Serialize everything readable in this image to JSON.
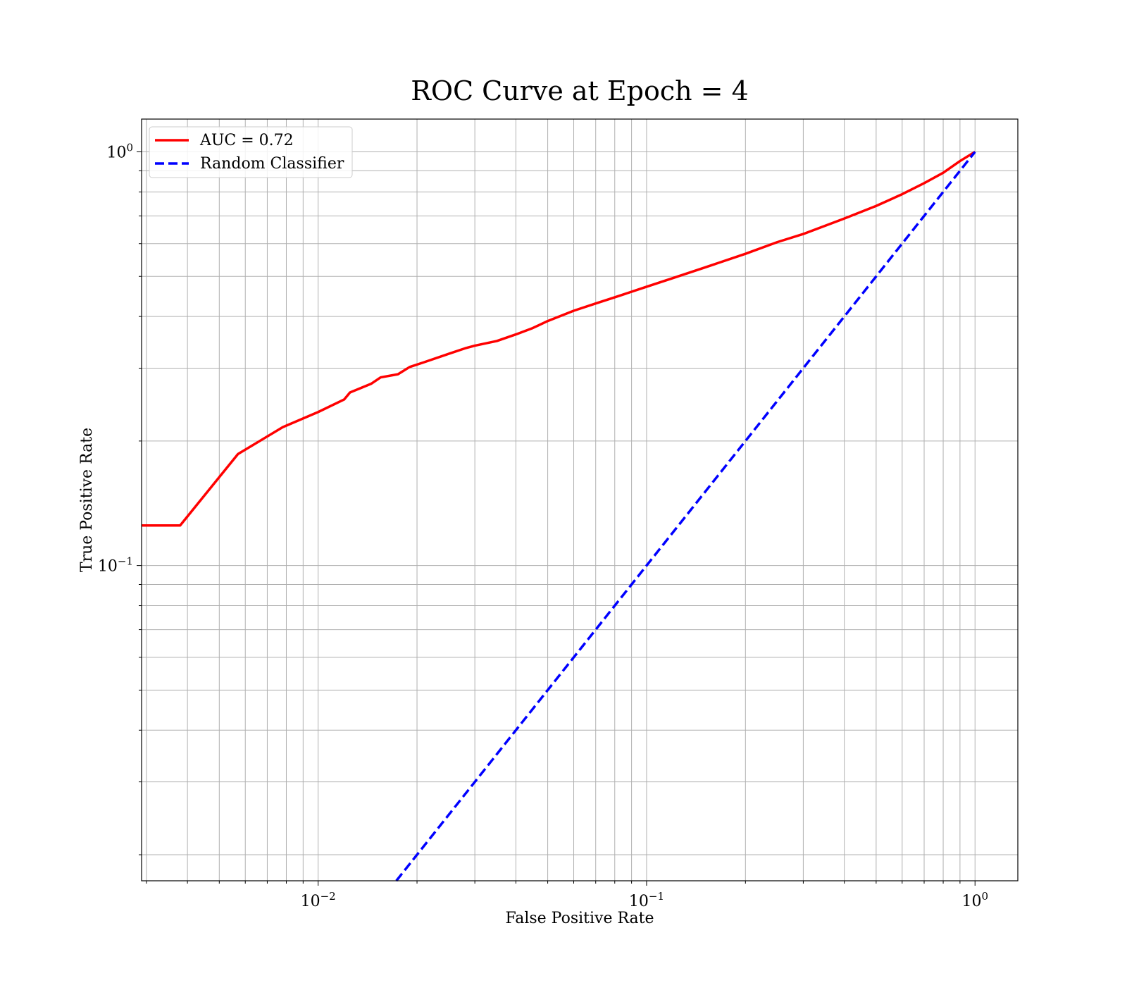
{
  "chart_data": {
    "type": "line",
    "title": "ROC Curve at Epoch = 4",
    "xlabel": "False Positive Rate",
    "ylabel": "True Positive Rate",
    "xscale": "log",
    "yscale": "log",
    "xlim": [
      0.0029,
      1.35
    ],
    "ylim": [
      0.0173,
      1.2
    ],
    "grid": true,
    "grid_minor": true,
    "legend_position": "top-left",
    "x_ticks": [
      {
        "value": 0.01,
        "base": "10",
        "exp": "−2"
      },
      {
        "value": 0.1,
        "base": "10",
        "exp": "−1"
      },
      {
        "value": 1,
        "base": "10",
        "exp": "0"
      }
    ],
    "y_ticks": [
      {
        "value": 0.1,
        "base": "10",
        "exp": "−1"
      },
      {
        "value": 1,
        "base": "10",
        "exp": "0"
      }
    ],
    "series": [
      {
        "name": "AUC = 0.72",
        "color": "#ff0000",
        "style": "solid",
        "x": [
          0.0029,
          0.0038,
          0.0057,
          0.0078,
          0.01,
          0.012,
          0.0125,
          0.0145,
          0.0155,
          0.0175,
          0.019,
          0.021,
          0.025,
          0.028,
          0.03,
          0.035,
          0.04,
          0.045,
          0.05,
          0.06,
          0.07,
          0.08,
          0.1,
          0.12,
          0.15,
          0.2,
          0.25,
          0.3,
          0.4,
          0.5,
          0.6,
          0.7,
          0.8,
          0.9,
          1.0
        ],
        "y": [
          0.125,
          0.125,
          0.186,
          0.216,
          0.235,
          0.252,
          0.262,
          0.275,
          0.285,
          0.29,
          0.302,
          0.31,
          0.325,
          0.335,
          0.34,
          0.349,
          0.362,
          0.375,
          0.39,
          0.413,
          0.43,
          0.445,
          0.472,
          0.495,
          0.525,
          0.567,
          0.605,
          0.633,
          0.69,
          0.74,
          0.79,
          0.84,
          0.89,
          0.95,
          1.0
        ]
      },
      {
        "name": "Random Classifier",
        "color": "#0000ff",
        "style": "dashed",
        "x": [
          0.0173,
          1.0
        ],
        "y": [
          0.0173,
          1.0
        ]
      }
    ]
  }
}
